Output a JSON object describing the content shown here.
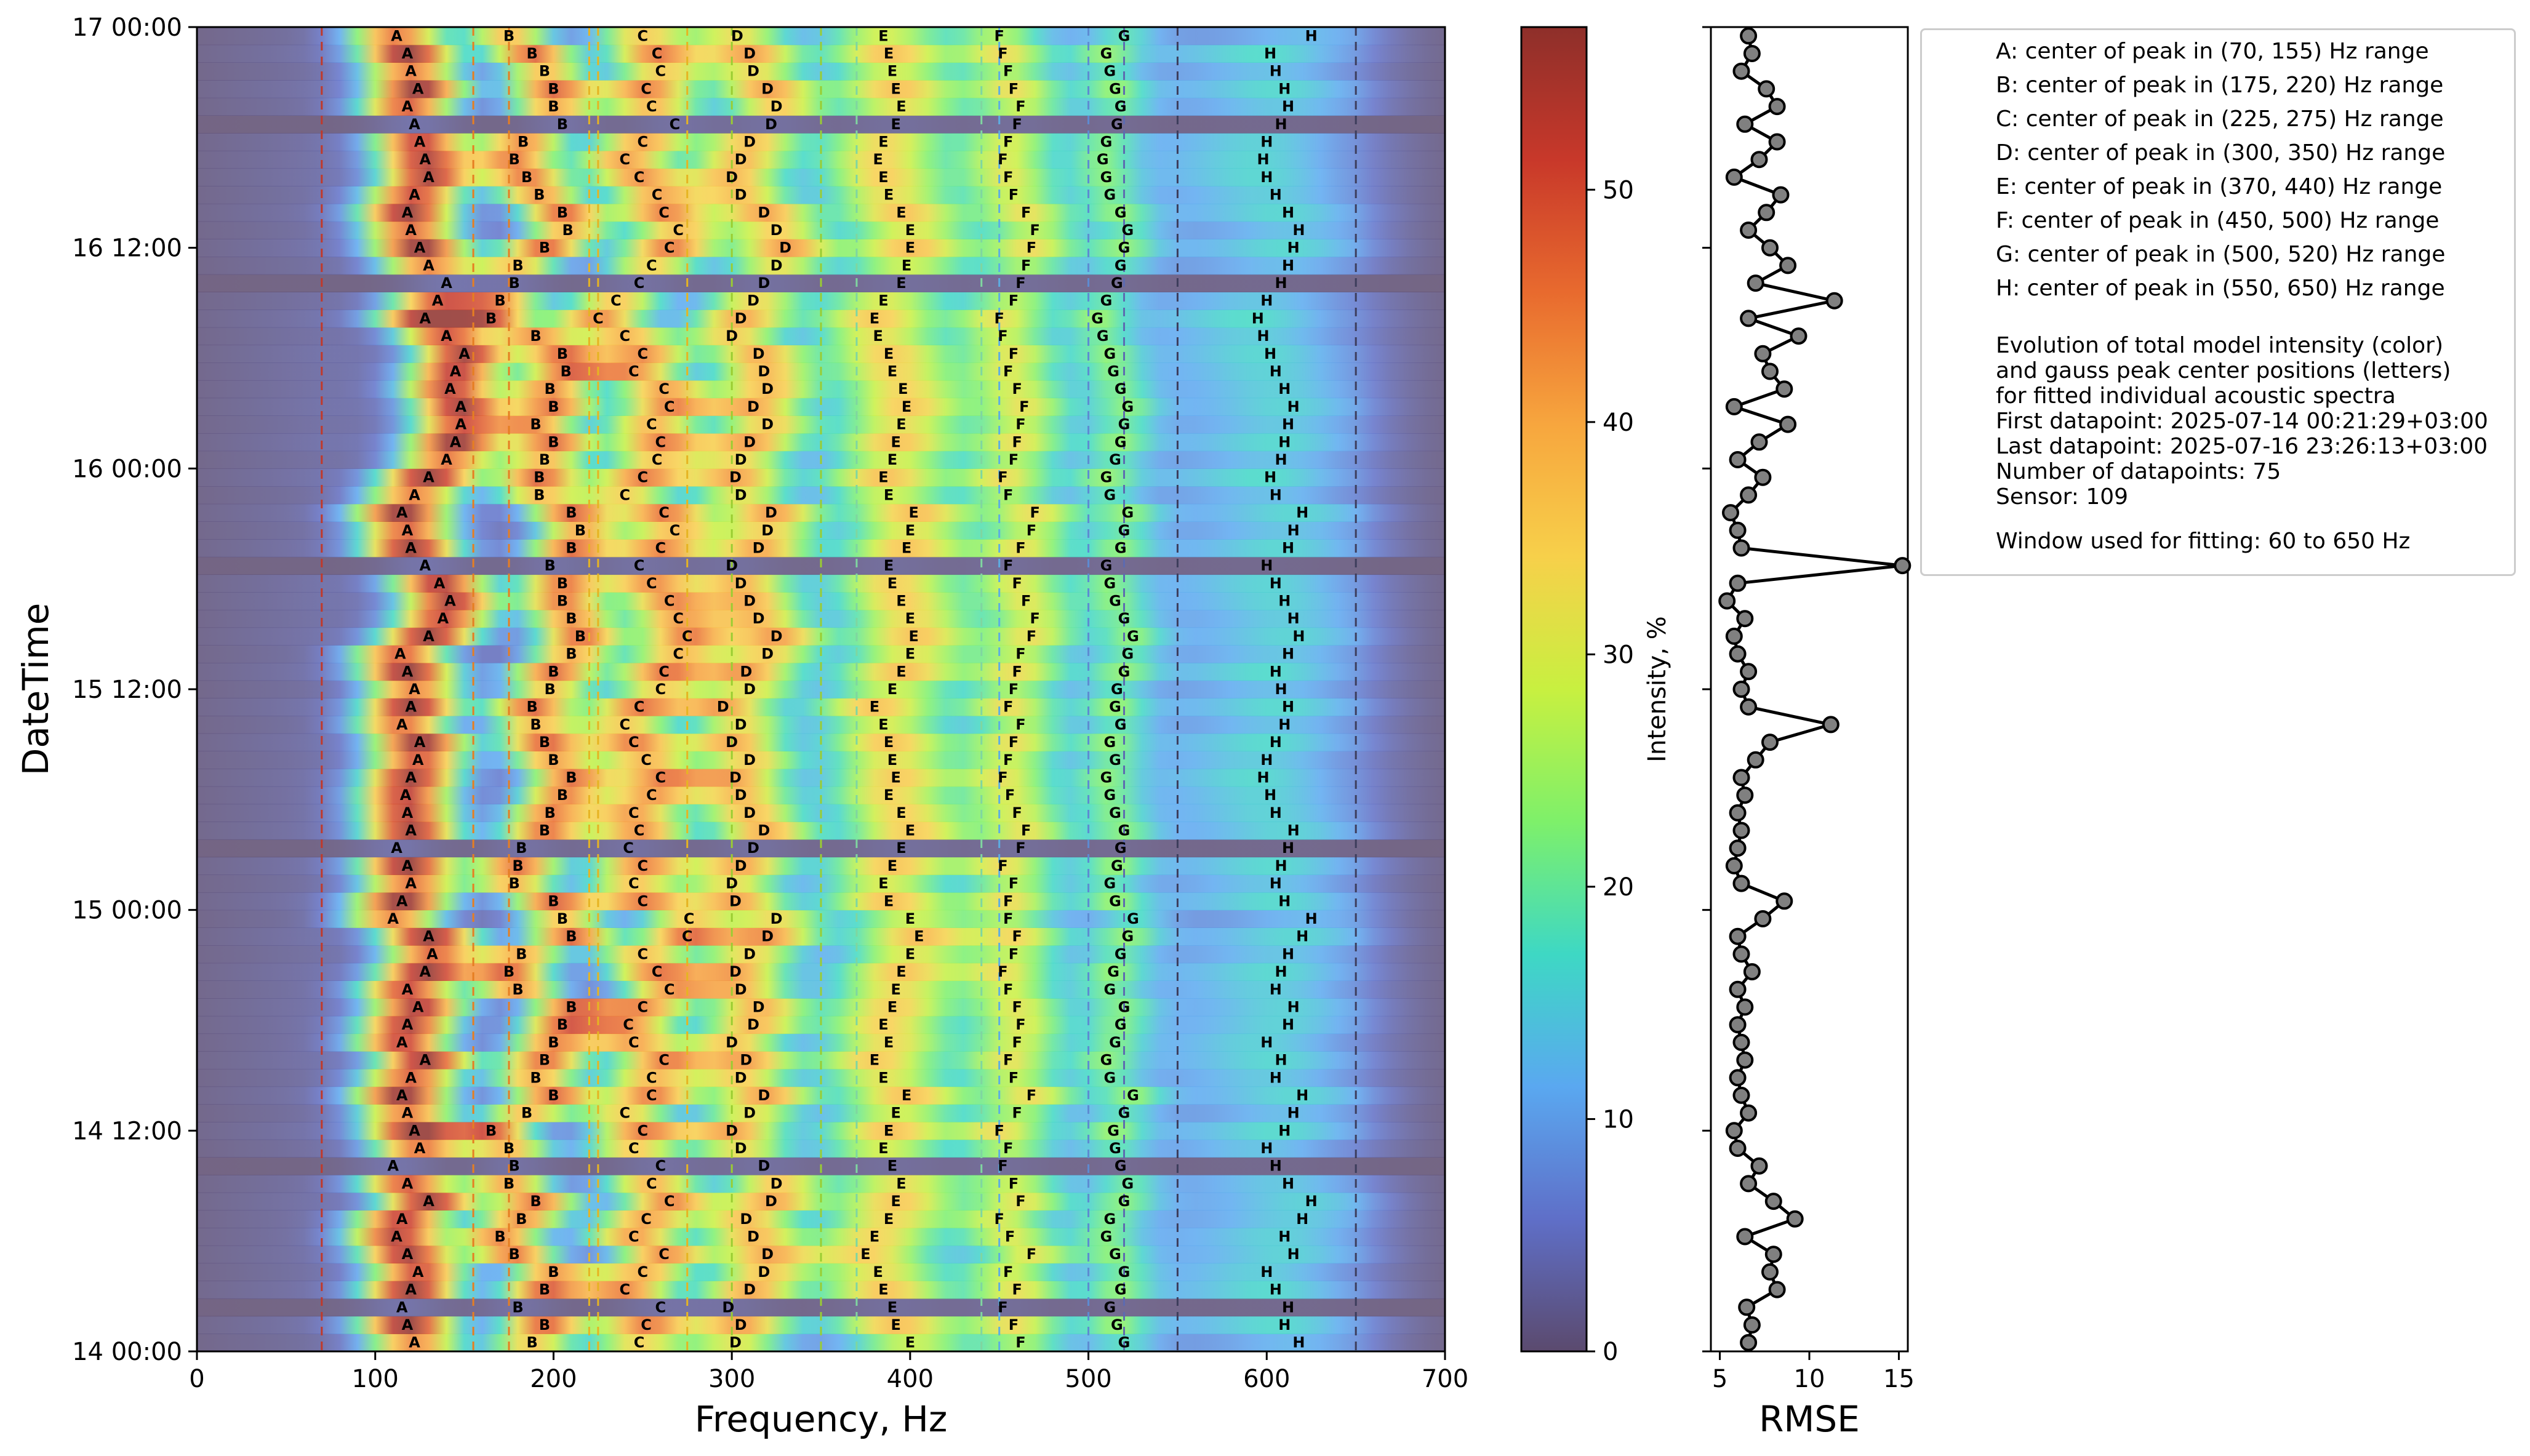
{
  "chart_data": [
    {
      "type": "heatmap",
      "xlabel": "Frequency, Hz",
      "ylabel": "DateTime",
      "xlim": [
        0,
        700
      ],
      "ylim": [
        "2025-07-14 00:00",
        "2025-07-17 00:00"
      ],
      "xticks": [
        "0",
        "100",
        "200",
        "300",
        "400",
        "500",
        "600",
        "700"
      ],
      "yticks": [
        "14 00:00",
        "14 12:00",
        "15 00:00",
        "15 12:00",
        "16 00:00",
        "16 12:00",
        "17 00:00"
      ],
      "colorbar": {
        "label": "Intensity, %",
        "range": [
          0,
          57
        ],
        "ticks": [
          "0",
          "10",
          "20",
          "30",
          "40",
          "50"
        ]
      },
      "colormap_stops": [
        "#5b4a6e",
        "#5f6fc8",
        "#5aa8f0",
        "#3ed8c4",
        "#7ef06a",
        "#c8f040",
        "#f7d04a",
        "#f7a63e",
        "#e86a2e",
        "#c8382a",
        "#8e2f2a"
      ],
      "range_lines": [
        {
          "hz": 70,
          "color": "#c0392b"
        },
        {
          "hz": 155,
          "color": "#e67e22"
        },
        {
          "hz": 175,
          "color": "#e67e22"
        },
        {
          "hz": 220,
          "color": "#e6b422"
        },
        {
          "hz": 225,
          "color": "#e6b422"
        },
        {
          "hz": 275,
          "color": "#e6b422"
        },
        {
          "hz": 300,
          "color": "#9acd32"
        },
        {
          "hz": 350,
          "color": "#9acd32"
        },
        {
          "hz": 370,
          "color": "#7fd6a0"
        },
        {
          "hz": 440,
          "color": "#7fd6a0"
        },
        {
          "hz": 450,
          "color": "#5dade2"
        },
        {
          "hz": 500,
          "color": "#5d8bd2"
        },
        {
          "hz": 520,
          "color": "#5d6bb0"
        },
        {
          "hz": 550,
          "color": "#3d3d5c"
        },
        {
          "hz": 650,
          "color": "#3d3d5c"
        }
      ],
      "peak_labels": [
        "A",
        "B",
        "C",
        "D",
        "E",
        "F",
        "G",
        "H"
      ],
      "peak_centers_hz": {
        "A": [
          122,
          118,
          115,
          120,
          124,
          118,
          112,
          115,
          130,
          118,
          110,
          125,
          122,
          118,
          115,
          120,
          128,
          115,
          118,
          124,
          118,
          128,
          132,
          130,
          110,
          115,
          120,
          118,
          112,
          120,
          118,
          117,
          120,
          124,
          125,
          115,
          120,
          122,
          118,
          114,
          130,
          138,
          142,
          136,
          128,
          120,
          118,
          115,
          122,
          130,
          140,
          145,
          148,
          148,
          142,
          145,
          150,
          140,
          128,
          135,
          140,
          130,
          125,
          120,
          118,
          122,
          130,
          128,
          125,
          122,
          118,
          124,
          120,
          118,
          112
        ],
        "B": [
          188,
          195,
          180,
          195,
          200,
          178,
          170,
          182,
          190,
          175,
          178,
          175,
          165,
          185,
          200,
          190,
          195,
          200,
          205,
          210,
          180,
          175,
          182,
          210,
          205,
          200,
          178,
          180,
          182,
          195,
          198,
          205,
          210,
          200,
          195,
          190,
          188,
          198,
          200,
          210,
          215,
          210,
          205,
          205,
          198,
          210,
          215,
          210,
          192,
          192,
          195,
          200,
          190,
          200,
          198,
          207,
          205,
          190,
          165,
          170,
          178,
          180,
          195,
          208,
          205,
          192,
          185,
          178,
          183,
          205,
          200,
          200,
          195,
          188,
          175
        ],
        "C": [
          248,
          252,
          260,
          240,
          250,
          262,
          245,
          252,
          265,
          255,
          260,
          245,
          250,
          240,
          255,
          255,
          262,
          245,
          242,
          250,
          265,
          258,
          250,
          275,
          276,
          250,
          245,
          250,
          242,
          248,
          245,
          255,
          260,
          252,
          245,
          240,
          248,
          260,
          262,
          270,
          275,
          270,
          265,
          255,
          248,
          260,
          268,
          262,
          240,
          250,
          258,
          260,
          255,
          265,
          262,
          245,
          250,
          240,
          225,
          235,
          248,
          255,
          265,
          270,
          262,
          258,
          248,
          240,
          250,
          268,
          255,
          252,
          260,
          258,
          250
        ],
        "D": [
          302,
          305,
          298,
          310,
          318,
          320,
          312,
          308,
          322,
          325,
          318,
          305,
          300,
          310,
          318,
          305,
          308,
          300,
          312,
          315,
          305,
          302,
          310,
          320,
          325,
          302,
          300,
          305,
          312,
          318,
          310,
          305,
          302,
          310,
          300,
          305,
          295,
          310,
          308,
          320,
          325,
          315,
          310,
          305,
          300,
          315,
          320,
          322,
          305,
          302,
          305,
          310,
          320,
          312,
          320,
          318,
          315,
          300,
          305,
          312,
          318,
          325,
          330,
          325,
          318,
          305,
          300,
          305,
          310,
          322,
          325,
          320,
          312,
          310,
          303
        ],
        "E": [
          400,
          392,
          390,
          385,
          382,
          375,
          380,
          388,
          392,
          395,
          390,
          385,
          388,
          392,
          398,
          385,
          380,
          388,
          385,
          390,
          392,
          395,
          400,
          405,
          400,
          388,
          385,
          390,
          395,
          400,
          395,
          388,
          392,
          390,
          388,
          385,
          380,
          390,
          395,
          400,
          402,
          400,
          395,
          390,
          388,
          398,
          400,
          402,
          388,
          385,
          390,
          392,
          395,
          398,
          396,
          390,
          388,
          382,
          380,
          385,
          395,
          398,
          400,
          400,
          395,
          388,
          385,
          382,
          385,
          392,
          395,
          392,
          390,
          388,
          385
        ],
        "F": [
          462,
          458,
          452,
          460,
          455,
          468,
          456,
          450,
          462,
          458,
          452,
          455,
          450,
          460,
          468,
          458,
          455,
          460,
          462,
          460,
          455,
          452,
          458,
          460,
          455,
          455,
          458,
          452,
          462,
          465,
          460,
          456,
          452,
          455,
          458,
          462,
          455,
          458,
          460,
          462,
          468,
          470,
          465,
          460,
          455,
          462,
          468,
          470,
          455,
          452,
          458,
          460,
          462,
          464,
          460,
          455,
          458,
          452,
          450,
          458,
          462,
          465,
          468,
          470,
          465,
          458,
          455,
          452,
          455,
          460,
          462,
          458,
          455,
          452,
          450
        ],
        "G": [
          520,
          516,
          512,
          518,
          520,
          515,
          510,
          512,
          520,
          522,
          518,
          515,
          514,
          520,
          525,
          512,
          510,
          515,
          518,
          520,
          512,
          514,
          518,
          522,
          525,
          515,
          512,
          516,
          518,
          520,
          515,
          512,
          510,
          515,
          512,
          518,
          515,
          516,
          520,
          522,
          525,
          520,
          515,
          512,
          510,
          518,
          520,
          522,
          512,
          510,
          515,
          518,
          520,
          522,
          518,
          514,
          512,
          508,
          505,
          510,
          516,
          518,
          520,
          522,
          518,
          512,
          510,
          508,
          510,
          516,
          518,
          515,
          512,
          510,
          520
        ],
        "H": [
          618,
          610,
          612,
          605,
          600,
          615,
          610,
          620,
          625,
          612,
          605,
          600,
          610,
          615,
          620,
          605,
          608,
          600,
          612,
          615,
          605,
          608,
          612,
          620,
          625,
          610,
          605,
          608,
          612,
          615,
          605,
          602,
          598,
          600,
          605,
          610,
          612,
          608,
          605,
          612,
          618,
          615,
          610,
          605,
          600,
          612,
          615,
          620,
          605,
          602,
          608,
          610,
          612,
          615,
          610,
          605,
          602,
          598,
          595,
          600,
          608,
          612,
          615,
          618,
          612,
          605,
          600,
          598,
          600,
          608,
          612,
          610,
          605,
          602,
          625
        ]
      }
    },
    {
      "type": "line",
      "xlabel": "RMSE",
      "ylabel": "",
      "xlim": [
        4.5,
        15.5
      ],
      "xticks": [
        "5",
        "10",
        "15"
      ],
      "ylim": [
        "2025-07-14 00:00",
        "2025-07-17 00:00"
      ],
      "values": [
        6.6,
        6.8,
        6.5,
        8.2,
        7.8,
        8.0,
        6.4,
        9.2,
        8.0,
        6.6,
        7.2,
        6.0,
        5.8,
        6.6,
        6.2,
        6.0,
        6.4,
        6.2,
        6.0,
        6.4,
        6.0,
        6.8,
        6.2,
        6.0,
        7.4,
        8.6,
        6.2,
        5.8,
        6.0,
        6.2,
        6.0,
        6.4,
        6.2,
        7.0,
        7.8,
        11.2,
        6.6,
        6.2,
        6.6,
        6.0,
        5.8,
        6.4,
        5.4,
        6.0,
        15.2,
        6.2,
        6.0,
        5.6,
        6.6,
        7.4,
        6.0,
        7.2,
        8.8,
        5.8,
        8.6,
        7.8,
        7.4,
        9.4,
        6.6,
        11.4,
        7.0,
        8.8,
        7.8,
        6.6,
        7.6,
        8.4,
        5.8,
        7.2,
        8.2,
        6.4,
        8.2,
        7.6,
        6.2,
        6.8,
        6.6
      ]
    }
  ],
  "legend": {
    "peaks": [
      "A: center of peak in (70, 155) Hz range",
      "B: center of peak in (175, 220) Hz range",
      "C: center of peak in (225, 275) Hz range",
      "D: center of peak in (300, 350) Hz range",
      "E: center of peak in (370, 440) Hz range",
      "F: center of peak in (450, 500) Hz range",
      "G: center of peak in (500, 520) Hz range",
      "H: center of peak in (550, 650) Hz range"
    ],
    "info": [
      "Evolution of total model intensity (color)",
      "and gauss peak center positions (letters)",
      "for fitted individual acoustic spectra",
      "First datapoint: 2025-07-14 00:21:29+03:00",
      "Last datapoint: 2025-07-16 23:26:13+03:00",
      "Number of datapoints: 75",
      "Sensor: 109"
    ],
    "window": "Window used for fitting: 60 to 650 Hz"
  }
}
